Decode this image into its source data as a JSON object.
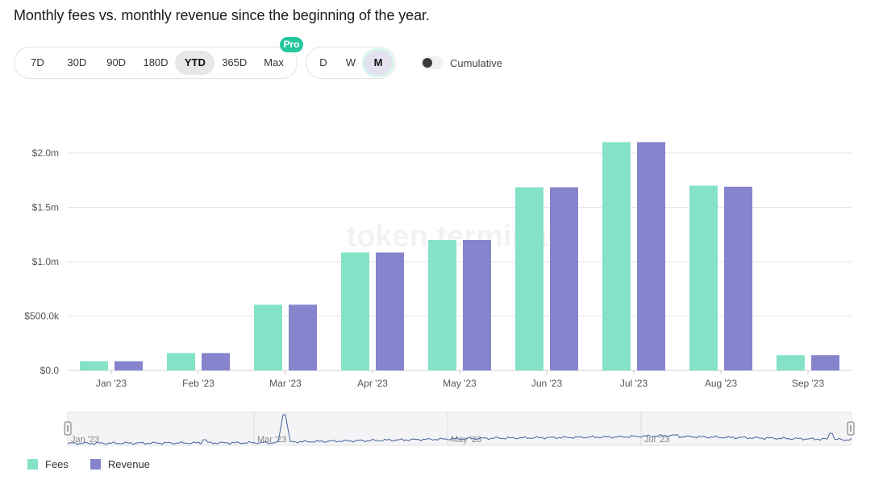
{
  "title": "Monthly fees vs. monthly revenue since the beginning of the year.",
  "controls": {
    "ranges": [
      "7D",
      "30D",
      "90D",
      "180D",
      "YTD",
      "365D",
      "Max"
    ],
    "active_range": "YTD",
    "pro_badge": "Pro",
    "granularity": [
      "D",
      "W",
      "M"
    ],
    "active_granularity": "M",
    "cumulative_label": "Cumulative"
  },
  "watermark": "token terminal_",
  "colors": {
    "fees": "#84e2c8",
    "revenue": "#8684cc",
    "grid": "#e6e6e6",
    "line": "#46629a"
  },
  "chart_data": {
    "type": "bar",
    "title": "Monthly fees vs. monthly revenue since the beginning of the year.",
    "categories": [
      "Jan '23",
      "Feb '23",
      "Mar '23",
      "Apr '23",
      "May '23",
      "Jun '23",
      "Jul '23",
      "Aug '23",
      "Sep '23"
    ],
    "series": [
      {
        "name": "Fees",
        "values": [
          85000,
          160000,
          605000,
          1085000,
          1200000,
          1685000,
          2100000,
          1700000,
          140000
        ]
      },
      {
        "name": "Revenue",
        "values": [
          85000,
          160000,
          605000,
          1085000,
          1200000,
          1685000,
          2100000,
          1690000,
          140000
        ]
      }
    ],
    "y_ticks": [
      {
        "value": 0,
        "label": "$0.0"
      },
      {
        "value": 500000,
        "label": "$500.0k"
      },
      {
        "value": 1000000,
        "label": "$1.0m"
      },
      {
        "value": 1500000,
        "label": "$1.5m"
      },
      {
        "value": 2000000,
        "label": "$2.0m"
      }
    ],
    "ylim": [
      0,
      2000000
    ],
    "xlabel": "",
    "ylabel": "",
    "grid": true,
    "legend": "bottom-left",
    "navigator_labels": [
      "Jan '23",
      "Mar '23",
      "May '23",
      "Jul '23"
    ]
  }
}
